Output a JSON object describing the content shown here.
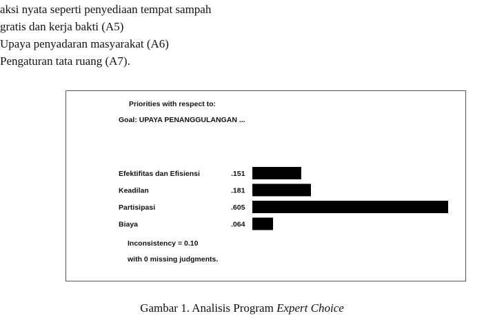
{
  "paragraph": {
    "lines": [
      "aksi nyata seperti penyediaan tempat sampah",
      "gratis dan kerja bakti (A5)",
      "Upaya penyadaran masyarakat (A6)",
      "Pengaturan tata ruang (A7)."
    ]
  },
  "chart_data": {
    "type": "bar",
    "orientation": "horizontal",
    "title": "Priorities with respect to:",
    "subtitle": "Goal: UPAYA PENANGGULANGAN ...",
    "categories": [
      "Efektifitas dan Efisiensi",
      "Keadilan",
      "Partisipasi",
      "Biaya"
    ],
    "values": [
      0.151,
      0.181,
      0.605,
      0.064
    ],
    "value_labels": [
      ".151",
      ".181",
      ".605",
      ".064"
    ],
    "bar_color": "#000000",
    "grid": false,
    "notes": [
      "Inconsistency = 0.10",
      "with 0  missing judgments."
    ]
  },
  "caption": {
    "prefix": "Gambar 1. Analisis Program ",
    "italic": "Expert Choice"
  }
}
